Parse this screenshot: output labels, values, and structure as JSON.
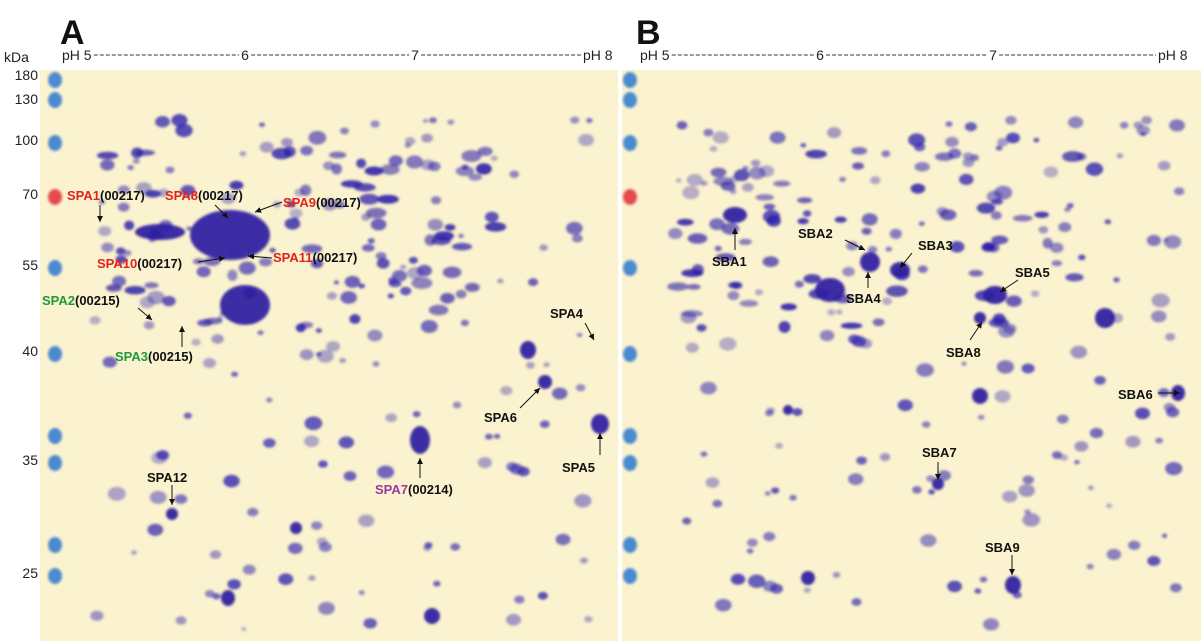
{
  "panels": [
    {
      "letter": "A",
      "ph_labels": [
        "pH 5",
        "6",
        "7",
        "pH 8"
      ],
      "spots": [
        {
          "name": "SPA1",
          "id": "(00217)"
        },
        {
          "name": "SPA8",
          "id": "(00217)"
        },
        {
          "name": "SPA9",
          "id": "(00217)"
        },
        {
          "name": "SPA10",
          "id": "(00217)"
        },
        {
          "name": "SPA11",
          "id": "(00217)"
        },
        {
          "name": "SPA2",
          "id": "(00215)"
        },
        {
          "name": "SPA3",
          "id": "(00215)"
        },
        {
          "name": "SPA4"
        },
        {
          "name": "SPA6"
        },
        {
          "name": "SPA5"
        },
        {
          "name": "SPA7",
          "id": "(00214)"
        },
        {
          "name": "SPA12"
        }
      ]
    },
    {
      "letter": "B",
      "ph_labels": [
        "pH 5",
        "6",
        "7",
        "pH 8"
      ],
      "spots": [
        {
          "name": "SBA1"
        },
        {
          "name": "SBA2"
        },
        {
          "name": "SBA3"
        },
        {
          "name": "SBA4"
        },
        {
          "name": "SBA5"
        },
        {
          "name": "SBA8"
        },
        {
          "name": "SBA6"
        },
        {
          "name": "SBA7"
        },
        {
          "name": "SBA9"
        }
      ]
    }
  ],
  "mw": {
    "unit": "kDa",
    "markers": [
      180,
      130,
      100,
      70,
      55,
      40,
      35,
      25
    ]
  }
}
